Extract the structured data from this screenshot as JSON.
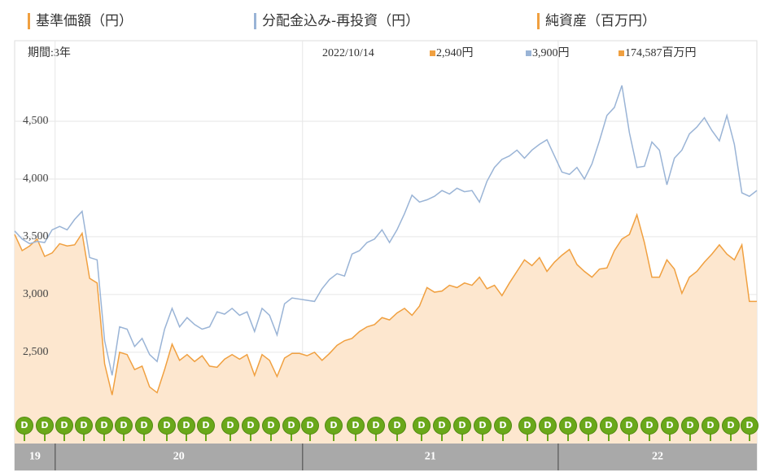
{
  "chart_data": {
    "type": "line",
    "period": "期間:3年",
    "date": "2022/10/14",
    "series": [
      {
        "name": "基準価額（円）",
        "color": "#f0a040",
        "fill": "#fde7cf",
        "latest": "2,940円",
        "values": [
          3520,
          3380,
          3420,
          3480,
          3330,
          3360,
          3440,
          3420,
          3430,
          3530,
          3140,
          3100,
          2400,
          2130,
          2500,
          2480,
          2350,
          2380,
          2200,
          2150,
          2350,
          2570,
          2430,
          2480,
          2420,
          2470,
          2380,
          2370,
          2440,
          2480,
          2440,
          2480,
          2300,
          2480,
          2430,
          2290,
          2450,
          2490,
          2490,
          2470,
          2500,
          2430,
          2490,
          2560,
          2600,
          2620,
          2680,
          2720,
          2740,
          2800,
          2780,
          2840,
          2880,
          2820,
          2900,
          3060,
          3020,
          3030,
          3080,
          3060,
          3100,
          3080,
          3150,
          3050,
          3080,
          2990,
          3100,
          3200,
          3300,
          3250,
          3320,
          3200,
          3280,
          3340,
          3390,
          3260,
          3200,
          3150,
          3220,
          3230,
          3380,
          3480,
          3520,
          3690,
          3450,
          3150,
          3150,
          3300,
          3220,
          3010,
          3150,
          3200,
          3280,
          3350,
          3430,
          3350,
          3300,
          3430,
          2940,
          2940
        ]
      },
      {
        "name": "分配金込み-再投資（円）",
        "color": "#9ab4d6",
        "latest": "3,900円",
        "values": [
          3550,
          3480,
          3440,
          3460,
          3450,
          3560,
          3590,
          3560,
          3650,
          3720,
          3320,
          3300,
          2600,
          2300,
          2720,
          2700,
          2550,
          2620,
          2480,
          2420,
          2700,
          2880,
          2720,
          2800,
          2740,
          2700,
          2720,
          2850,
          2830,
          2880,
          2820,
          2850,
          2680,
          2880,
          2820,
          2650,
          2920,
          2970,
          2960,
          2950,
          2940,
          3050,
          3130,
          3180,
          3160,
          3350,
          3380,
          3450,
          3480,
          3560,
          3450,
          3560,
          3700,
          3860,
          3800,
          3820,
          3850,
          3900,
          3870,
          3920,
          3890,
          3900,
          3800,
          3980,
          4100,
          4170,
          4200,
          4250,
          4180,
          4250,
          4300,
          4340,
          4200,
          4060,
          4040,
          4100,
          4000,
          4130,
          4330,
          4550,
          4620,
          4810,
          4400,
          4100,
          4110,
          4320,
          4250,
          3950,
          4180,
          4250,
          4390,
          4450,
          4530,
          4420,
          4330,
          4550,
          4300,
          3880,
          3850,
          3900
        ]
      }
    ],
    "net_assets": {
      "name": "純資産（百万円）",
      "color": "#f0a040",
      "latest": "174,587百万円"
    },
    "dividend_label": "D",
    "ylim": [
      1710,
      5000
    ],
    "yticks": [
      {
        "value": 2500,
        "label": "2,500"
      },
      {
        "value": 3000,
        "label": "3,000"
      },
      {
        "value": 3500,
        "label": "3,500"
      },
      {
        "value": 4000,
        "label": "4,000"
      },
      {
        "value": 4500,
        "label": "4,500"
      }
    ],
    "xlim": [
      0,
      99
    ],
    "xticks": [
      {
        "value": 0,
        "label": "19"
      },
      {
        "value": 5.4,
        "label": "20"
      },
      {
        "value": 38.4,
        "label": "21"
      },
      {
        "value": 72.5,
        "label": "22"
      }
    ],
    "grid": true
  }
}
